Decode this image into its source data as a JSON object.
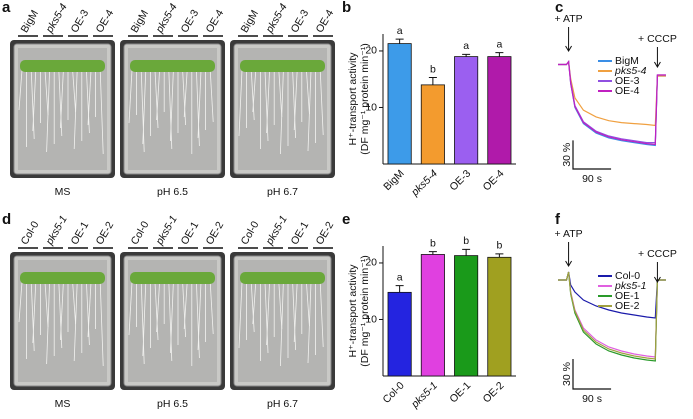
{
  "panels": {
    "a": {
      "label": "a",
      "genotypes": [
        "BigM",
        "pks5-4",
        "OE-3",
        "OE-4"
      ],
      "conditions": [
        "MS",
        "pH 6.5",
        "pH 6.7"
      ]
    },
    "d": {
      "label": "d",
      "genotypes": [
        "Col-0",
        "pks5-1",
        "OE-1",
        "OE-2"
      ],
      "conditions": [
        "MS",
        "pH 6.5",
        "pH 6.7"
      ]
    }
  },
  "chart_data": [
    {
      "type": "bar",
      "panel": "b",
      "ylabel": [
        "H⁺-transport activity",
        "(DF mg⁻¹ protein min⁻¹)"
      ],
      "categories": [
        "BigM",
        "pks5-4",
        "OE-3",
        "OE-4"
      ],
      "values": [
        21.3,
        14,
        19,
        19
      ],
      "errors": [
        0.8,
        1.3,
        0.4,
        0.7
      ],
      "letters": [
        "a",
        "b",
        "a",
        "a"
      ],
      "colors": [
        "#3d9be9",
        "#f39b2e",
        "#9b5ff0",
        "#b01aaa"
      ],
      "ylim": [
        0,
        23
      ],
      "yticks": [
        10,
        20
      ]
    },
    {
      "type": "line",
      "panel": "c",
      "annotations": [
        "+ ATP",
        "+ CCCP"
      ],
      "scalebar": [
        "30 %",
        "90 s"
      ],
      "x": [
        0,
        10,
        20,
        25,
        30,
        40,
        60,
        90,
        120,
        150,
        180,
        210,
        230,
        235,
        245,
        255
      ],
      "series": [
        {
          "name": "BigM",
          "color": "#3a8ee6",
          "values": [
            0,
            0,
            0,
            3,
            -20,
            -45,
            -62,
            -72,
            -77,
            -80,
            -82,
            -84,
            -85,
            -12,
            -12,
            -12
          ]
        },
        {
          "name": "pks5-4",
          "color": "#f0a040",
          "values": [
            0,
            0,
            0,
            3,
            -15,
            -35,
            -48,
            -55,
            -59,
            -61,
            -62,
            -63,
            -64,
            -12,
            -12,
            -12
          ]
        },
        {
          "name": "OE-3",
          "color": "#9050e0",
          "values": [
            0,
            0,
            0,
            3,
            -18,
            -43,
            -60,
            -70,
            -75,
            -78,
            -80,
            -82,
            -82,
            -11,
            -11,
            -11
          ]
        },
        {
          "name": "OE-4",
          "color": "#c020c0",
          "values": [
            0,
            0,
            0,
            3,
            -20,
            -44,
            -61,
            -71,
            -76,
            -79,
            -81,
            -83,
            -84,
            -11,
            -11,
            -11
          ]
        }
      ],
      "xlim": [
        0,
        260
      ],
      "ylim": [
        -95,
        10
      ]
    },
    {
      "type": "bar",
      "panel": "e",
      "ylabel": [
        "H⁺-transport activity",
        "(DF mg⁻¹ protein min⁻¹)"
      ],
      "categories": [
        "Col-0",
        "pks5-1",
        "OE-1",
        "OE-2"
      ],
      "values": [
        14.8,
        21.5,
        21.3,
        21
      ],
      "errors": [
        1.2,
        0.5,
        1.1,
        0.6
      ],
      "letters": [
        "a",
        "b",
        "b",
        "b"
      ],
      "colors": [
        "#2424e0",
        "#e040e0",
        "#1a9a1a",
        "#a0a020"
      ],
      "ylim": [
        0,
        23
      ],
      "yticks": [
        10,
        20
      ]
    },
    {
      "type": "line",
      "panel": "f",
      "annotations": [
        "+ ATP",
        "+ CCCP"
      ],
      "scalebar": [
        "30 %",
        "90 s"
      ],
      "x": [
        0,
        10,
        20,
        25,
        30,
        40,
        60,
        90,
        120,
        150,
        180,
        210,
        230,
        235,
        245,
        255
      ],
      "series": [
        {
          "name": "Col-0",
          "color": "#1a1aaa",
          "values": [
            0,
            0,
            0,
            8,
            -5,
            -12,
            -20,
            -26,
            -30,
            -33,
            -35,
            -37,
            -38,
            0,
            0,
            0
          ]
        },
        {
          "name": "pks5-1",
          "color": "#e060e0",
          "values": [
            0,
            0,
            0,
            8,
            -12,
            -30,
            -48,
            -60,
            -67,
            -71,
            -74,
            -76,
            -77,
            0,
            0,
            0
          ]
        },
        {
          "name": "OE-1",
          "color": "#2a9a2a",
          "values": [
            0,
            0,
            0,
            8,
            -14,
            -33,
            -52,
            -64,
            -71,
            -75,
            -78,
            -80,
            -81,
            0,
            0,
            0
          ]
        },
        {
          "name": "OE-2",
          "color": "#a0a040",
          "values": [
            0,
            0,
            0,
            8,
            -13,
            -31,
            -50,
            -62,
            -69,
            -73,
            -76,
            -78,
            -79,
            0,
            0,
            0
          ]
        }
      ],
      "xlim": [
        0,
        260
      ],
      "ylim": [
        -95,
        10
      ]
    }
  ]
}
